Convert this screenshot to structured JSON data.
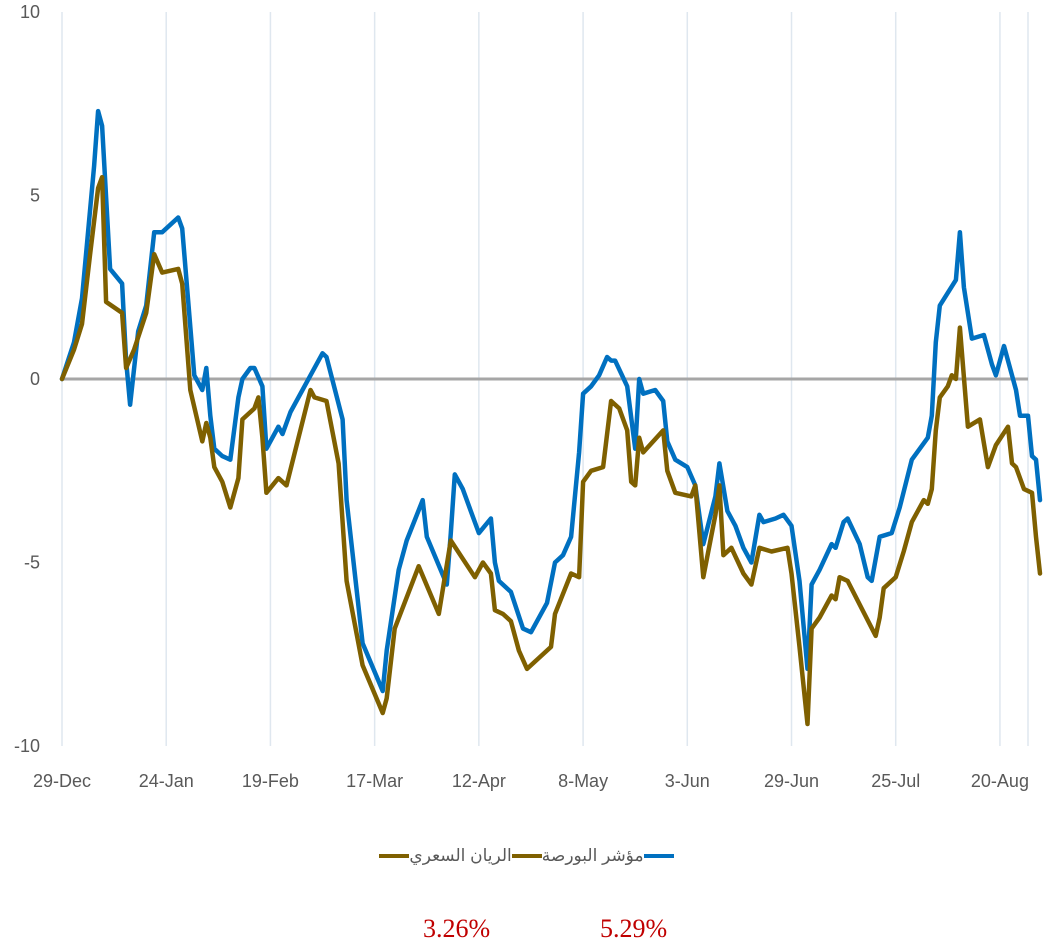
{
  "chart_data": {
    "type": "line",
    "title": "",
    "xlabel": "",
    "ylabel": "",
    "ylim": [
      -10,
      10
    ],
    "yticks": [
      10,
      5,
      0,
      -5,
      -10
    ],
    "xlim": [
      "2018-12-29",
      "2019-08-27"
    ],
    "x_tick_labels": [
      "29-Dec",
      "24-Jan",
      "19-Feb",
      "17-Mar",
      "12-Apr",
      "8-May",
      "3-Jun",
      "29-Jun",
      "25-Jul",
      "20-Aug"
    ],
    "x_tick_dates": [
      "2018-12-29",
      "2019-01-24",
      "2019-02-19",
      "2019-03-17",
      "2019-04-12",
      "2019-05-08",
      "2019-06-03",
      "2019-06-29",
      "2019-07-25",
      "2019-08-20"
    ],
    "zero_line_color": "#a6a6a6",
    "grid": "vertical",
    "legend_position": "bottom",
    "series": [
      {
        "name": "مؤشر البورصة",
        "color": "#0070c0",
        "points": [
          [
            "2018-12-29",
            0
          ],
          [
            "2019-01-01",
            1.0
          ],
          [
            "2019-01-03",
            2.2
          ],
          [
            "2019-01-06",
            5.8
          ],
          [
            "2019-01-07",
            7.3
          ],
          [
            "2019-01-08",
            6.9
          ],
          [
            "2019-01-10",
            3.0
          ],
          [
            "2019-01-13",
            2.6
          ],
          [
            "2019-01-14",
            0.5
          ],
          [
            "2019-01-15",
            -0.7
          ],
          [
            "2019-01-17",
            1.3
          ],
          [
            "2019-01-19",
            2.0
          ],
          [
            "2019-01-21",
            4.0
          ],
          [
            "2019-01-23",
            4.0
          ],
          [
            "2019-01-27",
            4.4
          ],
          [
            "2019-01-28",
            4.1
          ],
          [
            "2019-01-31",
            0.1
          ],
          [
            "2019-02-02",
            -0.3
          ],
          [
            "2019-02-03",
            0.3
          ],
          [
            "2019-02-04",
            -1.0
          ],
          [
            "2019-02-05",
            -1.9
          ],
          [
            "2019-02-07",
            -2.1
          ],
          [
            "2019-02-09",
            -2.2
          ],
          [
            "2019-02-11",
            -0.5
          ],
          [
            "2019-02-12",
            0
          ],
          [
            "2019-02-14",
            0.3
          ],
          [
            "2019-02-15",
            0.3
          ],
          [
            "2019-02-17",
            -0.2
          ],
          [
            "2019-02-18",
            -1.9
          ],
          [
            "2019-02-21",
            -1.3
          ],
          [
            "2019-02-22",
            -1.5
          ],
          [
            "2019-02-24",
            -0.9
          ],
          [
            "2019-03-01",
            0.1
          ],
          [
            "2019-03-04",
            0.7
          ],
          [
            "2019-03-05",
            0.6
          ],
          [
            "2019-03-09",
            -1.1
          ],
          [
            "2019-03-10",
            -3.3
          ],
          [
            "2019-03-14",
            -7.2
          ],
          [
            "2019-03-19",
            -8.5
          ],
          [
            "2019-03-20",
            -7.4
          ],
          [
            "2019-03-23",
            -5.2
          ],
          [
            "2019-03-25",
            -4.4
          ],
          [
            "2019-03-29",
            -3.3
          ],
          [
            "2019-03-30",
            -4.3
          ],
          [
            "2019-04-04",
            -5.6
          ],
          [
            "2019-04-05",
            -4.2
          ],
          [
            "2019-04-06",
            -2.6
          ],
          [
            "2019-04-08",
            -3.0
          ],
          [
            "2019-04-10",
            -3.6
          ],
          [
            "2019-04-12",
            -4.2
          ],
          [
            "2019-04-15",
            -3.8
          ],
          [
            "2019-04-16",
            -5.0
          ],
          [
            "2019-04-17",
            -5.5
          ],
          [
            "2019-04-20",
            -5.8
          ],
          [
            "2019-04-23",
            -6.8
          ],
          [
            "2019-04-25",
            -6.9
          ],
          [
            "2019-04-29",
            -6.1
          ],
          [
            "2019-05-01",
            -5.0
          ],
          [
            "2019-05-03",
            -4.8
          ],
          [
            "2019-05-05",
            -4.3
          ],
          [
            "2019-05-07",
            -2.0
          ],
          [
            "2019-05-08",
            -0.4
          ],
          [
            "2019-05-10",
            -0.2
          ],
          [
            "2019-05-12",
            0.1
          ],
          [
            "2019-05-14",
            0.6
          ],
          [
            "2019-05-15",
            0.5
          ],
          [
            "2019-05-16",
            0.5
          ],
          [
            "2019-05-19",
            -0.2
          ],
          [
            "2019-05-21",
            -1.9
          ],
          [
            "2019-05-22",
            0
          ],
          [
            "2019-05-23",
            -0.4
          ],
          [
            "2019-05-26",
            -0.3
          ],
          [
            "2019-05-28",
            -0.6
          ],
          [
            "2019-05-29",
            -1.7
          ],
          [
            "2019-05-31",
            -2.2
          ],
          [
            "2019-06-03",
            -2.4
          ],
          [
            "2019-06-05",
            -2.9
          ],
          [
            "2019-06-07",
            -4.5
          ],
          [
            "2019-06-10",
            -3.2
          ],
          [
            "2019-06-11",
            -2.3
          ],
          [
            "2019-06-13",
            -3.6
          ],
          [
            "2019-06-15",
            -4.0
          ],
          [
            "2019-06-17",
            -4.6
          ],
          [
            "2019-06-19",
            -5.0
          ],
          [
            "2019-06-21",
            -3.7
          ],
          [
            "2019-06-22",
            -3.9
          ],
          [
            "2019-06-25",
            -3.8
          ],
          [
            "2019-06-27",
            -3.7
          ],
          [
            "2019-06-29",
            -4.0
          ],
          [
            "2019-07-01",
            -5.5
          ],
          [
            "2019-07-03",
            -7.9
          ],
          [
            "2019-07-04",
            -5.6
          ],
          [
            "2019-07-06",
            -5.2
          ],
          [
            "2019-07-09",
            -4.5
          ],
          [
            "2019-07-10",
            -4.6
          ],
          [
            "2019-07-12",
            -3.9
          ],
          [
            "2019-07-13",
            -3.8
          ],
          [
            "2019-07-16",
            -4.5
          ],
          [
            "2019-07-18",
            -5.4
          ],
          [
            "2019-07-19",
            -5.5
          ],
          [
            "2019-07-21",
            -4.3
          ],
          [
            "2019-07-24",
            -4.2
          ],
          [
            "2019-07-26",
            -3.5
          ],
          [
            "2019-07-29",
            -2.2
          ],
          [
            "2019-07-31",
            -1.9
          ],
          [
            "2019-08-02",
            -1.6
          ],
          [
            "2019-08-03",
            -1.0
          ],
          [
            "2019-08-04",
            1.0
          ],
          [
            "2019-08-05",
            2.0
          ],
          [
            "2019-08-09",
            2.7
          ],
          [
            "2019-08-10",
            4.0
          ],
          [
            "2019-08-11",
            2.5
          ],
          [
            "2019-08-13",
            1.1
          ],
          [
            "2019-08-16",
            1.2
          ],
          [
            "2019-08-18",
            0.4
          ],
          [
            "2019-08-19",
            0.1
          ],
          [
            "2019-08-21",
            0.9
          ],
          [
            "2019-08-23",
            0.1
          ],
          [
            "2019-08-24",
            -0.3
          ],
          [
            "2019-08-25",
            -1.0
          ],
          [
            "2019-08-27",
            -1.0
          ],
          [
            "2019-08-28",
            -2.1
          ],
          [
            "2019-08-29",
            -2.2
          ],
          [
            "2019-08-30",
            -3.3
          ]
        ]
      },
      {
        "name": "الريان السعري",
        "color": "#7f6000",
        "points": [
          [
            "2018-12-29",
            0
          ],
          [
            "2019-01-01",
            0.8
          ],
          [
            "2019-01-03",
            1.5
          ],
          [
            "2019-01-05",
            3.4
          ],
          [
            "2019-01-07",
            5.2
          ],
          [
            "2019-01-08",
            5.5
          ],
          [
            "2019-01-09",
            2.1
          ],
          [
            "2019-01-13",
            1.8
          ],
          [
            "2019-01-14",
            0.3
          ],
          [
            "2019-01-16",
            0.8
          ],
          [
            "2019-01-19",
            1.8
          ],
          [
            "2019-01-21",
            3.4
          ],
          [
            "2019-01-23",
            2.9
          ],
          [
            "2019-01-27",
            3.0
          ],
          [
            "2019-01-28",
            2.6
          ],
          [
            "2019-01-30",
            -0.3
          ],
          [
            "2019-02-02",
            -1.7
          ],
          [
            "2019-02-03",
            -1.2
          ],
          [
            "2019-02-04",
            -1.6
          ],
          [
            "2019-02-05",
            -2.4
          ],
          [
            "2019-02-07",
            -2.8
          ],
          [
            "2019-02-09",
            -3.5
          ],
          [
            "2019-02-11",
            -2.7
          ],
          [
            "2019-02-12",
            -1.1
          ],
          [
            "2019-02-15",
            -0.8
          ],
          [
            "2019-02-16",
            -0.5
          ],
          [
            "2019-02-17",
            -1.6
          ],
          [
            "2019-02-18",
            -3.1
          ],
          [
            "2019-02-21",
            -2.7
          ],
          [
            "2019-02-23",
            -2.9
          ],
          [
            "2019-03-01",
            -0.3
          ],
          [
            "2019-03-02",
            -0.5
          ],
          [
            "2019-03-05",
            -0.6
          ],
          [
            "2019-03-08",
            -2.3
          ],
          [
            "2019-03-10",
            -5.5
          ],
          [
            "2019-03-14",
            -7.8
          ],
          [
            "2019-03-19",
            -9.1
          ],
          [
            "2019-03-20",
            -8.7
          ],
          [
            "2019-03-22",
            -6.8
          ],
          [
            "2019-03-28",
            -5.1
          ],
          [
            "2019-04-02",
            -6.4
          ],
          [
            "2019-04-05",
            -4.4
          ],
          [
            "2019-04-08",
            -4.9
          ],
          [
            "2019-04-11",
            -5.4
          ],
          [
            "2019-04-13",
            -5.0
          ],
          [
            "2019-04-15",
            -5.3
          ],
          [
            "2019-04-16",
            -6.3
          ],
          [
            "2019-04-18",
            -6.4
          ],
          [
            "2019-04-20",
            -6.6
          ],
          [
            "2019-04-22",
            -7.4
          ],
          [
            "2019-04-24",
            -7.9
          ],
          [
            "2019-04-30",
            -7.3
          ],
          [
            "2019-05-01",
            -6.4
          ],
          [
            "2019-05-05",
            -5.3
          ],
          [
            "2019-05-07",
            -5.4
          ],
          [
            "2019-05-08",
            -2.8
          ],
          [
            "2019-05-10",
            -2.5
          ],
          [
            "2019-05-13",
            -2.4
          ],
          [
            "2019-05-14",
            -1.5
          ],
          [
            "2019-05-15",
            -0.6
          ],
          [
            "2019-05-17",
            -0.8
          ],
          [
            "2019-05-19",
            -1.4
          ],
          [
            "2019-05-20",
            -2.8
          ],
          [
            "2019-05-21",
            -2.9
          ],
          [
            "2019-05-22",
            -1.6
          ],
          [
            "2019-05-23",
            -2.0
          ],
          [
            "2019-05-28",
            -1.4
          ],
          [
            "2019-05-29",
            -2.5
          ],
          [
            "2019-05-31",
            -3.1
          ],
          [
            "2019-06-04",
            -3.2
          ],
          [
            "2019-06-05",
            -2.9
          ],
          [
            "2019-06-07",
            -5.4
          ],
          [
            "2019-06-10",
            -3.7
          ],
          [
            "2019-06-11",
            -2.9
          ],
          [
            "2019-06-12",
            -4.8
          ],
          [
            "2019-06-14",
            -4.6
          ],
          [
            "2019-06-17",
            -5.3
          ],
          [
            "2019-06-19",
            -5.6
          ],
          [
            "2019-06-21",
            -4.6
          ],
          [
            "2019-06-24",
            -4.7
          ],
          [
            "2019-06-28",
            -4.6
          ],
          [
            "2019-06-29",
            -5.3
          ],
          [
            "2019-07-01",
            -7.3
          ],
          [
            "2019-07-03",
            -9.4
          ],
          [
            "2019-07-04",
            -6.8
          ],
          [
            "2019-07-06",
            -6.5
          ],
          [
            "2019-07-09",
            -5.9
          ],
          [
            "2019-07-10",
            -6.0
          ],
          [
            "2019-07-11",
            -5.4
          ],
          [
            "2019-07-13",
            -5.5
          ],
          [
            "2019-07-20",
            -7.0
          ],
          [
            "2019-07-21",
            -6.5
          ],
          [
            "2019-07-22",
            -5.7
          ],
          [
            "2019-07-25",
            -5.4
          ],
          [
            "2019-07-27",
            -4.7
          ],
          [
            "2019-07-29",
            -3.9
          ],
          [
            "2019-08-01",
            -3.3
          ],
          [
            "2019-08-02",
            -3.4
          ],
          [
            "2019-08-03",
            -3.0
          ],
          [
            "2019-08-04",
            -1.4
          ],
          [
            "2019-08-05",
            -0.5
          ],
          [
            "2019-08-07",
            -0.2
          ],
          [
            "2019-08-08",
            0.1
          ],
          [
            "2019-08-09",
            0
          ],
          [
            "2019-08-10",
            1.4
          ],
          [
            "2019-08-12",
            -1.3
          ],
          [
            "2019-08-15",
            -1.1
          ],
          [
            "2019-08-17",
            -2.4
          ],
          [
            "2019-08-19",
            -1.8
          ],
          [
            "2019-08-22",
            -1.3
          ],
          [
            "2019-08-23",
            -2.3
          ],
          [
            "2019-08-24",
            -2.4
          ],
          [
            "2019-08-26",
            -3.0
          ],
          [
            "2019-08-28",
            -3.1
          ],
          [
            "2019-08-29",
            -4.3
          ],
          [
            "2019-08-30",
            -5.3
          ]
        ]
      }
    ]
  },
  "stats": {
    "left_value": "3.26%",
    "right_value": "5.29%",
    "color": "#c00000"
  }
}
